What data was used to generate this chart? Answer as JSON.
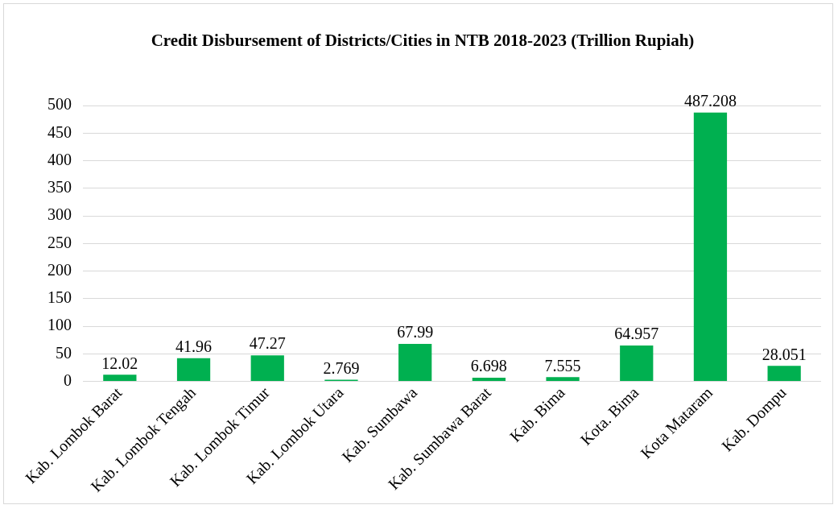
{
  "chart_data": {
    "type": "bar",
    "title": "Credit Disbursement of Districts/Cities in NTB 2018-2023 (Trillion Rupiah)",
    "categories": [
      "Kab. Lombok Barat",
      "Kab. Lombok Tengah",
      "Kab. Lombok Timur",
      "Kab. Lombok Utara",
      "Kab. Sumbawa",
      "Kab. Sumbawa Barat",
      "Kab. Bima",
      "Kota. Bima",
      "Kota Mataram",
      "Kab. Dompu"
    ],
    "values": [
      12.02,
      41.96,
      47.27,
      2.769,
      67.99,
      6.698,
      7.555,
      64.957,
      487.208,
      28.051
    ],
    "color": "#00b050",
    "ylim": [
      0,
      500
    ],
    "yticks": [
      0,
      50,
      100,
      150,
      200,
      250,
      300,
      350,
      400,
      450,
      500
    ],
    "grid": "y",
    "data_labels": true,
    "legend": false
  }
}
